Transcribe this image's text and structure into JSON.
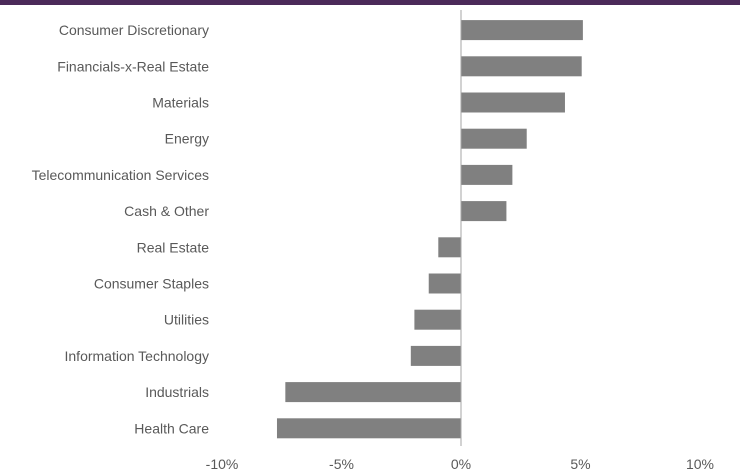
{
  "colors": {
    "top_band": "#4b2a59",
    "bar": "#808080",
    "zero_line": "#a6a6a6",
    "text": "#595959"
  },
  "chart_data": {
    "type": "bar",
    "orientation": "horizontal",
    "categories": [
      "Consumer Discretionary",
      "Financials-x-Real Estate",
      "Materials",
      "Energy",
      "Telecommunication Services",
      "Cash & Other",
      "Real Estate",
      "Consumer Staples",
      "Utilities",
      "Information Technology",
      "Industrials",
      "Health Care"
    ],
    "values": [
      5.1,
      5.05,
      4.35,
      2.75,
      2.15,
      1.9,
      -0.95,
      -1.35,
      -1.95,
      -2.1,
      -7.35,
      -7.7
    ],
    "value_format": "percent",
    "xlim": [
      -10,
      10
    ],
    "xticks": [
      -10,
      -5,
      0,
      5,
      10
    ],
    "xtick_labels": [
      "-10%",
      "-5%",
      "0%",
      "5%",
      "10%"
    ],
    "grid": false,
    "legend": "none"
  }
}
